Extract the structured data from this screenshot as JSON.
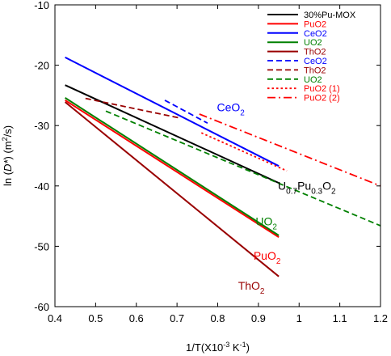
{
  "chart_data": {
    "type": "line",
    "xlabel_parts": {
      "pre": "1/T(X10",
      "sup": "-3",
      "mid": " K",
      "sup2": "-1",
      "post": ")"
    },
    "ylabel_parts": {
      "pre": "ln (",
      "ital": "D*",
      "mid": ")  (m",
      "sup": "2",
      "post": "/s)"
    },
    "xlim": [
      0.4,
      1.2
    ],
    "ylim": [
      -60,
      -10
    ],
    "x_ticks": [
      0.4,
      0.5,
      0.6,
      0.7,
      0.8,
      0.9,
      1.0,
      1.1,
      1.2
    ],
    "x_tick_labels": [
      "0.4",
      "0.5",
      "0.6",
      "0.7",
      "0.8",
      "0.9",
      "1",
      "1.1",
      "1.2"
    ],
    "y_ticks": [
      -60,
      -50,
      -40,
      -30,
      -20,
      -10
    ],
    "y_tick_labels": [
      "-60",
      "-50",
      "-40",
      "-30",
      "-20",
      "-10"
    ],
    "grid": false,
    "legend_position": "top-right",
    "series": [
      {
        "name": "30%Pu-MOX",
        "color": "#000000",
        "dash": "solid",
        "x": [
          0.425,
          0.95
        ],
        "y": [
          -23.3,
          -39.5
        ]
      },
      {
        "name": "PuO2",
        "color": "#ff0000",
        "dash": "solid",
        "x": [
          0.425,
          0.95
        ],
        "y": [
          -25.8,
          -48.5
        ]
      },
      {
        "name": "CeO2",
        "color": "#0000ff",
        "dash": "solid",
        "x": [
          0.425,
          0.95
        ],
        "y": [
          -18.7,
          -36.7
        ]
      },
      {
        "name": "UO2",
        "color": "#008000",
        "dash": "solid",
        "x": [
          0.425,
          0.95
        ],
        "y": [
          -25.4,
          -48.2
        ]
      },
      {
        "name": "ThO2",
        "color": "#990000",
        "dash": "solid",
        "x": [
          0.425,
          0.95
        ],
        "y": [
          -26.1,
          -55.0
        ]
      },
      {
        "name": "CeO2",
        "color": "#0000ff",
        "dash": "dash",
        "x": [
          0.67,
          0.775
        ],
        "y": [
          -25.8,
          -29.6
        ]
      },
      {
        "name": "ThO2",
        "color": "#990000",
        "dash": "dash",
        "x": [
          0.475,
          0.71
        ],
        "y": [
          -25.5,
          -28.8
        ]
      },
      {
        "name": "UO2",
        "color": "#008000",
        "dash": "dash",
        "x": [
          0.525,
          1.2
        ],
        "y": [
          -27.6,
          -46.6
        ]
      },
      {
        "name": "PuO2 (1)",
        "color": "#ff0000",
        "dash": "dot",
        "x": [
          0.76,
          0.97
        ],
        "y": [
          -31.2,
          -37.5
        ]
      },
      {
        "name": "PuO2 (2)",
        "color": "#ff0000",
        "dash": "dashdot",
        "x": [
          0.755,
          1.2
        ],
        "y": [
          -28.1,
          -40.0
        ]
      }
    ],
    "annotations": [
      {
        "parts": [
          {
            "t": "CeO"
          },
          {
            "t": "2",
            "sub": true
          }
        ],
        "color": "#0000ff",
        "x": 0.798,
        "y": -27.6
      },
      {
        "parts": [
          {
            "t": "U"
          },
          {
            "t": "0.7",
            "sub": true
          },
          {
            "t": "Pu"
          },
          {
            "t": "0.3",
            "sub": true
          },
          {
            "t": "O"
          },
          {
            "t": "2",
            "sub": true
          }
        ],
        "color": "#000000",
        "x": 0.948,
        "y": -40.6
      },
      {
        "parts": [
          {
            "t": "UO"
          },
          {
            "t": "2",
            "sub": true
          }
        ],
        "color": "#008000",
        "x": 0.893,
        "y": -46.5
      },
      {
        "parts": [
          {
            "t": "PuO"
          },
          {
            "t": "2",
            "sub": true
          }
        ],
        "color": "#ff0000",
        "x": 0.888,
        "y": -52.2
      },
      {
        "parts": [
          {
            "t": "ThO"
          },
          {
            "t": "2",
            "sub": true
          }
        ],
        "color": "#990000",
        "x": 0.85,
        "y": -57.2
      }
    ]
  }
}
